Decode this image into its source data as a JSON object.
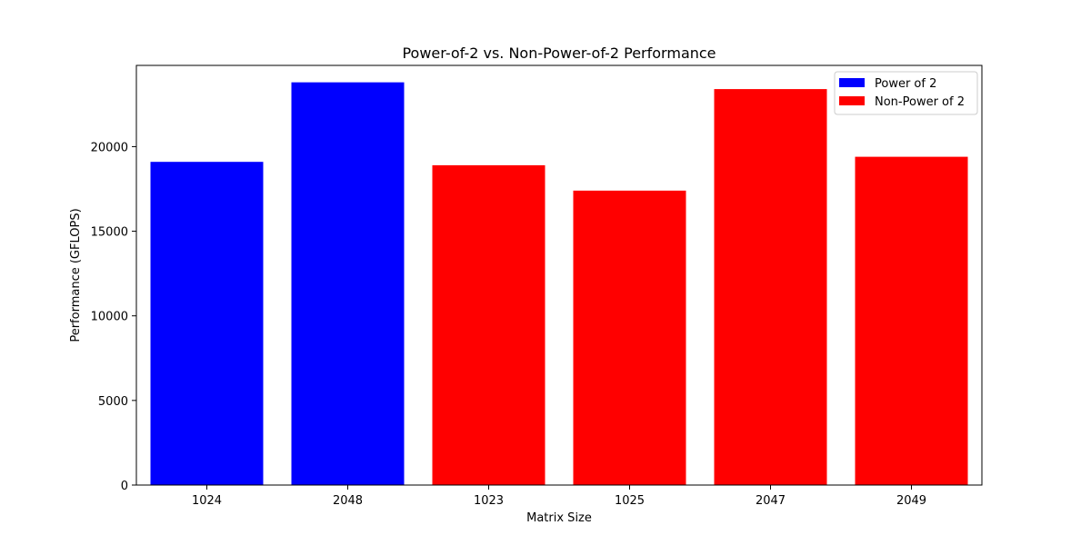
{
  "chart_data": {
    "type": "bar",
    "title": "Power-of-2 vs. Non-Power-of-2 Performance",
    "xlabel": "Matrix Size",
    "ylabel": "Performance (GFLOPS)",
    "categories": [
      "1024",
      "2048",
      "1023",
      "1025",
      "2047",
      "2049"
    ],
    "values": [
      19100,
      23800,
      18900,
      17400,
      23400,
      19400
    ],
    "bar_series": [
      "Power of 2",
      "Power of 2",
      "Non-Power of 2",
      "Non-Power of 2",
      "Non-Power of 2",
      "Non-Power of 2"
    ],
    "series": [
      {
        "name": "Power of 2",
        "color": "#0000ff"
      },
      {
        "name": "Non-Power of 2",
        "color": "#ff0000"
      }
    ],
    "ylim": [
      0,
      24800
    ],
    "yticks": [
      0,
      5000,
      10000,
      15000,
      20000
    ],
    "grid": false,
    "legend_position": "top-right"
  }
}
